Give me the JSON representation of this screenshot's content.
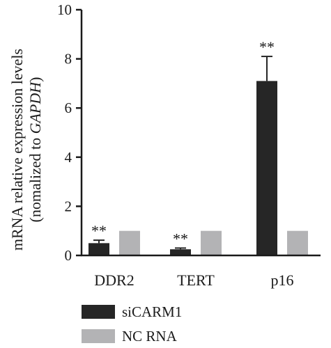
{
  "chart_data": {
    "type": "bar",
    "categories": [
      "DDR2",
      "TERT",
      "p16"
    ],
    "series": [
      {
        "name": "siCARM1",
        "values": [
          0.5,
          0.25,
          7.1
        ],
        "errors": [
          0.12,
          0.05,
          1.0
        ],
        "color": "#262626"
      },
      {
        "name": "NC RNA",
        "values": [
          1.0,
          1.0,
          1.0
        ],
        "errors": [
          0,
          0,
          0
        ],
        "color": "#b3b3b5"
      }
    ],
    "significance": [
      "**",
      "**",
      "**"
    ],
    "ylabel_line1": "mRNA relative expression levels",
    "ylabel_line2_prefix": "(nomalized to ",
    "ylabel_line2_gene": "GAPDH",
    "ylabel_line2_suffix": ")",
    "ylim": [
      0,
      10
    ],
    "yticks": [
      "0",
      "2",
      "4",
      "6",
      "8",
      "10"
    ],
    "legend_position": "bottom-left",
    "grid": false
  }
}
